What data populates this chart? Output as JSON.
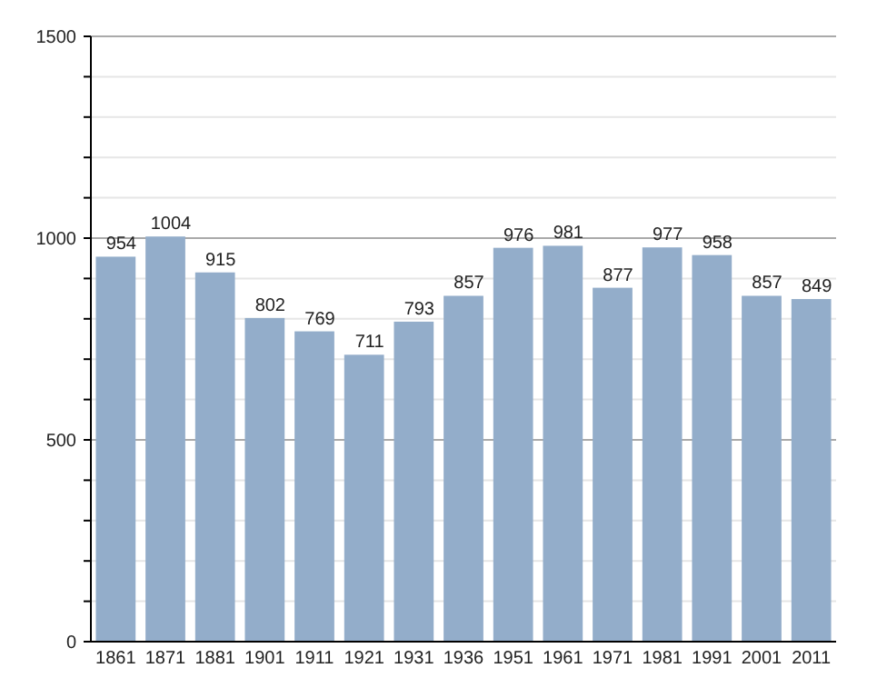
{
  "chart_data": {
    "type": "bar",
    "categories": [
      "1861",
      "1871",
      "1881",
      "1901",
      "1911",
      "1921",
      "1931",
      "1936",
      "1951",
      "1961",
      "1971",
      "1981",
      "1991",
      "2001",
      "2011"
    ],
    "values": [
      954,
      1004,
      915,
      802,
      769,
      711,
      793,
      857,
      976,
      981,
      877,
      977,
      958,
      857,
      849
    ],
    "color": "#93adca",
    "ylim": [
      0,
      1500
    ],
    "yticks": [
      0,
      {
        "value": 100,
        "label": null
      },
      {
        "value": 200,
        "label": null
      },
      {
        "value": 300,
        "label": null
      },
      {
        "value": 400,
        "label": null
      },
      500,
      {
        "value": 600,
        "label": null
      },
      {
        "value": 700,
        "label": null
      },
      {
        "value": 800,
        "label": null
      },
      {
        "value": 900,
        "label": null
      },
      1000,
      {
        "value": 1100,
        "label": null
      },
      {
        "value": 1200,
        "label": null
      },
      {
        "value": 1300,
        "label": null
      },
      {
        "value": 1400,
        "label": null
      },
      1500
    ],
    "grid": true,
    "data_labels": true
  }
}
